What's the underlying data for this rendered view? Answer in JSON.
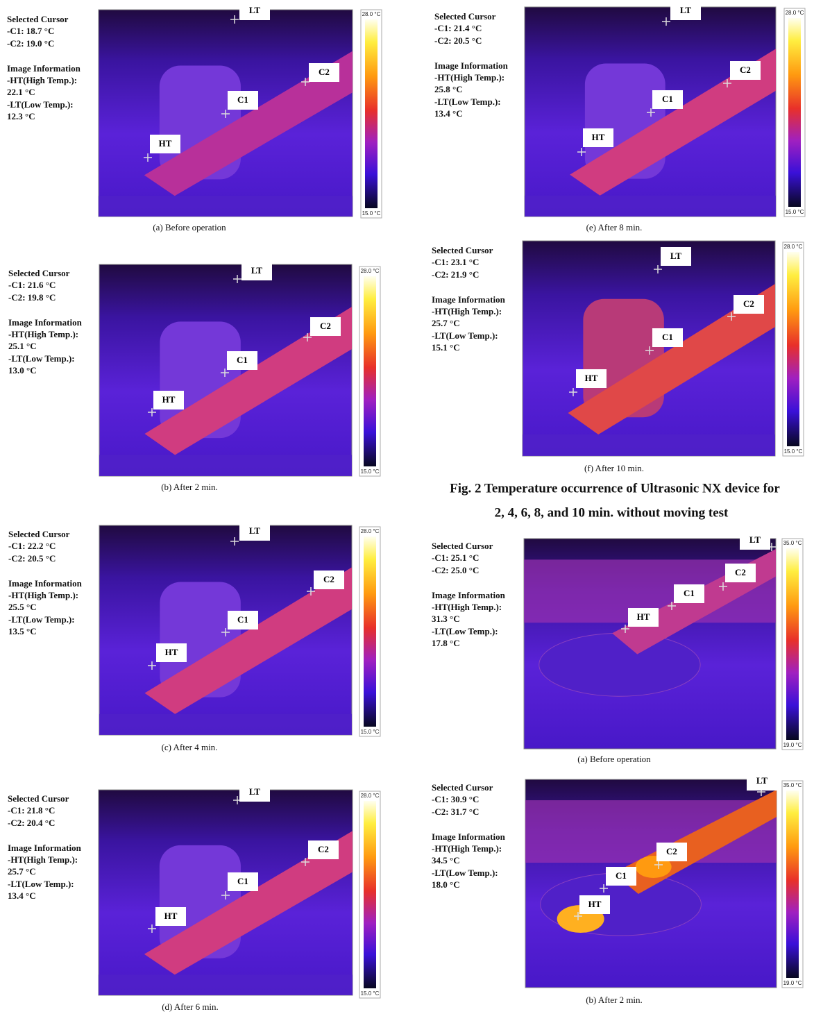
{
  "figure_caption": [
    "Fig. 2 Temperature occurrence of Ultrasonic NX device for",
    "2, 4, 6, 8, and 10 min. without moving test"
  ],
  "panels": [
    {
      "info": [
        "Selected Cursor",
        "-C1: 18.7 °C",
        "-C2: 19.0 °C",
        "Image Information",
        "-HT(High Temp.):",
        "22.1 °C",
        "-LT(Low Temp.):",
        "12.3 °C"
      ],
      "scale_max": "28.0 °C",
      "scale_min": "15.0 °C",
      "cursors": [
        "LT",
        "C2",
        "C1",
        "HT"
      ],
      "caption": "(a) Before operation"
    },
    {
      "info": [
        "Selected Cursor",
        "-C1: 21.6 °C",
        "-C2: 19.8 °C",
        "Image Information",
        "-HT(High Temp.):",
        "25.1 °C",
        "-LT(Low Temp.):",
        "13.0 °C"
      ],
      "scale_max": "28.0 °C",
      "scale_min": "15.0 °C",
      "cursors": [
        "LT",
        "C2",
        "C1",
        "HT"
      ],
      "caption": "(b) After 2 min."
    },
    {
      "info": [
        "Selected Cursor",
        "-C1: 22.2 °C",
        "-C2: 20.5 °C",
        "Image Information",
        "-HT(High Temp.):",
        "25.5 °C",
        "-LT(Low Temp.):",
        "13.5 °C"
      ],
      "scale_max": "28.0 °C",
      "scale_min": "15.0 °C",
      "cursors": [
        "LT",
        "C2",
        "C1",
        "HT"
      ],
      "caption": "(c) After 4 min."
    },
    {
      "info": [
        "Selected Cursor",
        "-C1: 21.8 °C",
        "-C2: 20.4 °C",
        "Image Information",
        "-HT(High Temp.):",
        "25.7 °C",
        "-LT(Low Temp.):",
        "13.4 °C"
      ],
      "scale_max": "28.0 °C",
      "scale_min": "15.0 °C",
      "cursors": [
        "LT",
        "C2",
        "C1",
        "HT"
      ],
      "caption": "(d) After 6 min."
    },
    {
      "info": [
        "Selected Cursor",
        "-C1: 21.4 °C",
        "-C2: 20.5 °C",
        "Image Information",
        "-HT(High Temp.):",
        "25.8 °C",
        "-LT(Low Temp.):",
        "13.4 °C"
      ],
      "scale_max": "28.0 °C",
      "scale_min": "15.0 °C",
      "cursors": [
        "LT",
        "C2",
        "C1",
        "HT"
      ],
      "caption": "(e) After 8 min."
    },
    {
      "info": [
        "Selected Cursor",
        "-C1: 23.1 °C",
        "-C2: 21.9 °C",
        "Image Information",
        "-HT(High Temp.):",
        "25.7 °C",
        "-LT(Low Temp.):",
        "15.1 °C"
      ],
      "scale_max": "28.0 °C",
      "scale_min": "15.0 °C",
      "cursors": [
        "LT",
        "C2",
        "C1",
        "HT"
      ],
      "caption": "(f) After 10 min."
    },
    {
      "info": [
        "Selected Cursor",
        "-C1: 25.1 °C",
        "-C2: 25.0 °C",
        "Image Information",
        "-HT(High Temp.):",
        "31.3 °C",
        "-LT(Low Temp.):",
        "17.8 °C"
      ],
      "scale_max": "35.0 °C",
      "scale_min": "19.0 °C",
      "cursors": [
        "LT",
        "C2",
        "C1",
        "HT"
      ],
      "caption": "(a) Before operation"
    },
    {
      "info": [
        "Selected Cursor",
        "-C1: 30.9 °C",
        "-C2: 31.7 °C",
        "Image Information",
        "-HT(High Temp.):",
        "34.5 °C",
        "-LT(Low Temp.):",
        "18.0 °C"
      ],
      "scale_max": "35.0 °C",
      "scale_min": "19.0 °C",
      "cursors": [
        "LT",
        "C2",
        "C1",
        "HT"
      ],
      "caption": "(b) After 2 min."
    }
  ]
}
